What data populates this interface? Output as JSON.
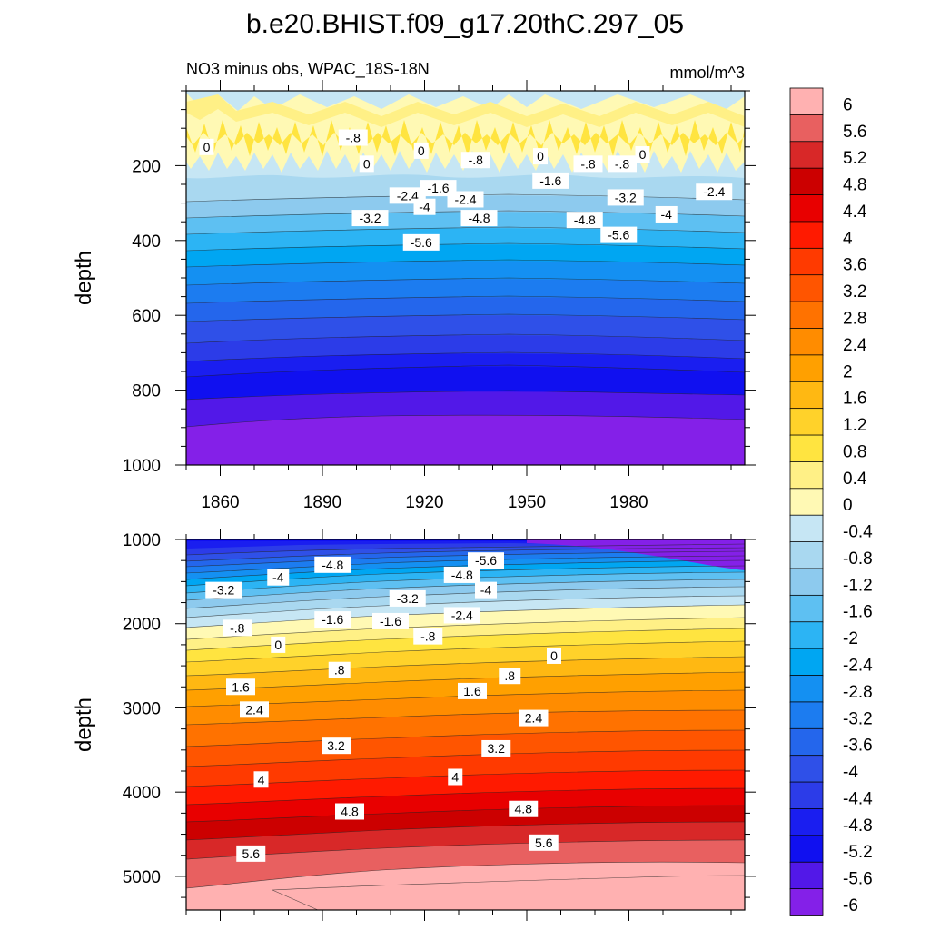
{
  "chart_data": {
    "type": "contour",
    "title": "b.e20.BHIST.f09_g17.20thC.297_05",
    "subtitle_left": "NO3 minus obs, WPAC_18S-18N",
    "units": "mmol/m^3",
    "xlabel": "",
    "xlim": [
      1850,
      2014
    ],
    "xticks": [
      1860,
      1890,
      1920,
      1950,
      1980
    ],
    "xtick_labels": [
      "1860",
      "1890",
      "1920",
      "1950",
      "1980"
    ],
    "panels": [
      {
        "name": "upper",
        "ylabel": "depth",
        "ylim": [
          0,
          1000
        ],
        "yticks": [
          200,
          400,
          600,
          800,
          1000
        ],
        "ytick_labels": [
          "200",
          "400",
          "600",
          "800",
          "1000"
        ],
        "contour_labels": [
          {
            "text": "0",
            "x": 1856,
            "y": 150
          },
          {
            "text": "-.8",
            "x": 1899,
            "y": 125
          },
          {
            "text": "0",
            "x": 1903,
            "y": 195
          },
          {
            "text": "-2.4",
            "x": 1915,
            "y": 280
          },
          {
            "text": "-3.2",
            "x": 1904,
            "y": 340
          },
          {
            "text": "0",
            "x": 1919,
            "y": 160
          },
          {
            "text": "-1.6",
            "x": 1924,
            "y": 260
          },
          {
            "text": "-.8",
            "x": 1935,
            "y": 185
          },
          {
            "text": "-4",
            "x": 1920,
            "y": 310
          },
          {
            "text": "-2.4",
            "x": 1932,
            "y": 290
          },
          {
            "text": "-4.8",
            "x": 1936,
            "y": 340
          },
          {
            "text": "-5.6",
            "x": 1919,
            "y": 405
          },
          {
            "text": "0",
            "x": 1954,
            "y": 175
          },
          {
            "text": "-1.6",
            "x": 1957,
            "y": 240
          },
          {
            "text": "-4.8",
            "x": 1967,
            "y": 345
          },
          {
            "text": "-.8",
            "x": 1968,
            "y": 195
          },
          {
            "text": "-.8",
            "x": 1978,
            "y": 195
          },
          {
            "text": "0",
            "x": 1984,
            "y": 170
          },
          {
            "text": "-3.2",
            "x": 1979,
            "y": 285
          },
          {
            "text": "-5.6",
            "x": 1977,
            "y": 385
          },
          {
            "text": "-4",
            "x": 1991,
            "y": 330
          },
          {
            "text": "-2.4",
            "x": 2005,
            "y": 270
          }
        ]
      },
      {
        "name": "lower",
        "ylabel": "depth",
        "ylim": [
          1000,
          5400
        ],
        "yticks": [
          1000,
          2000,
          3000,
          4000,
          5000
        ],
        "ytick_labels": [
          "1000",
          "2000",
          "3000",
          "4000",
          "5000"
        ],
        "contour_labels": [
          {
            "text": "-4.8",
            "x": 1893,
            "y": 1300
          },
          {
            "text": "-5.6",
            "x": 1938,
            "y": 1250
          },
          {
            "text": "-4",
            "x": 1877,
            "y": 1450
          },
          {
            "text": "-4.8",
            "x": 1931,
            "y": 1420
          },
          {
            "text": "-3.2",
            "x": 1861,
            "y": 1600
          },
          {
            "text": "-4",
            "x": 1938,
            "y": 1600
          },
          {
            "text": "-3.2",
            "x": 1915,
            "y": 1700
          },
          {
            "text": "-1.6",
            "x": 1893,
            "y": 1950
          },
          {
            "text": "-2.4",
            "x": 1931,
            "y": 1900
          },
          {
            "text": "-1.6",
            "x": 1910,
            "y": 1970
          },
          {
            "text": "-.8",
            "x": 1865,
            "y": 2050
          },
          {
            "text": "-.8",
            "x": 1921,
            "y": 2150
          },
          {
            "text": "0",
            "x": 1877,
            "y": 2250
          },
          {
            "text": "0",
            "x": 1958,
            "y": 2380
          },
          {
            "text": ".8",
            "x": 1895,
            "y": 2550
          },
          {
            "text": ".8",
            "x": 1945,
            "y": 2620
          },
          {
            "text": "1.6",
            "x": 1866,
            "y": 2750
          },
          {
            "text": "1.6",
            "x": 1934,
            "y": 2800
          },
          {
            "text": "2.4",
            "x": 1870,
            "y": 3020
          },
          {
            "text": "2.4",
            "x": 1952,
            "y": 3120
          },
          {
            "text": "3.2",
            "x": 1894,
            "y": 3450
          },
          {
            "text": "3.2",
            "x": 1941,
            "y": 3480
          },
          {
            "text": "4",
            "x": 1872,
            "y": 3850
          },
          {
            "text": "4",
            "x": 1929,
            "y": 3820
          },
          {
            "text": "4.8",
            "x": 1898,
            "y": 4230
          },
          {
            "text": "4.8",
            "x": 1949,
            "y": 4200
          },
          {
            "text": "5.6",
            "x": 1869,
            "y": 4730
          },
          {
            "text": "5.6",
            "x": 1955,
            "y": 4600
          }
        ]
      }
    ],
    "colorbar": {
      "labels": [
        "6",
        "5.6",
        "5.2",
        "4.8",
        "4.4",
        "4",
        "3.6",
        "3.2",
        "2.8",
        "2.4",
        "2",
        "1.6",
        "1.2",
        "0.8",
        "0.4",
        "0",
        "-0.4",
        "-0.8",
        "-1.2",
        "-1.6",
        "-2",
        "-2.4",
        "-2.8",
        "-3.2",
        "-3.6",
        "-4",
        "-4.4",
        "-4.8",
        "-5.2",
        "-5.6",
        "-6"
      ],
      "colors": [
        "#FFB1B1",
        "#E86060",
        "#D82828",
        "#CC0000",
        "#E80000",
        "#FF1A00",
        "#FF3A00",
        "#FF5500",
        "#FF7200",
        "#FF8C00",
        "#FFA000",
        "#FFB812",
        "#FFD22A",
        "#FFE440",
        "#FFF086",
        "#FFF9B4",
        "#C6E6F4",
        "#A9D8F0",
        "#8DCAEE",
        "#5EC0F2",
        "#2CB4F4",
        "#00A6F2",
        "#1490F2",
        "#1C7CF0",
        "#2466EC",
        "#2F50E8",
        "#2C3CE8",
        "#1A1EF0",
        "#1010F0",
        "#5218E8",
        "#8420E8"
      ]
    },
    "colors": {
      "deep_low": "#8420E8",
      "deep_high": "#FFB1B1"
    }
  }
}
